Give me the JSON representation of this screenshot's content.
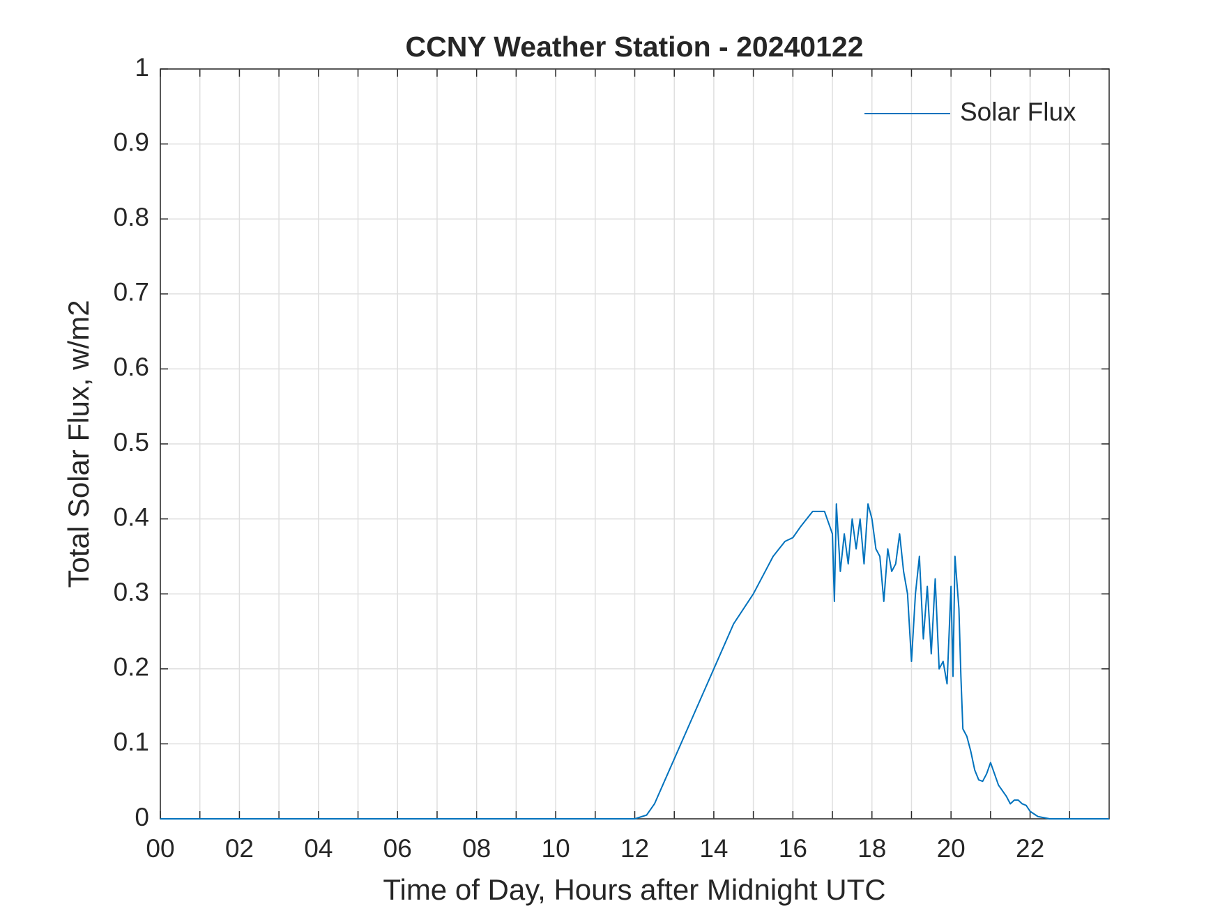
{
  "chart_data": {
    "type": "line",
    "title": "CCNY Weather Station - 20240122",
    "x_label": "Time of Day, Hours after Midnight UTC",
    "y_label": "Total Solar Flux, w/m2",
    "xlim": [
      0,
      24
    ],
    "ylim": [
      0,
      1
    ],
    "xticks": [
      {
        "value": 0,
        "label": "00"
      },
      {
        "value": 2,
        "label": "02"
      },
      {
        "value": 4,
        "label": "04"
      },
      {
        "value": 6,
        "label": "06"
      },
      {
        "value": 8,
        "label": "08"
      },
      {
        "value": 10,
        "label": "10"
      },
      {
        "value": 12,
        "label": "12"
      },
      {
        "value": 14,
        "label": "14"
      },
      {
        "value": 16,
        "label": "16"
      },
      {
        "value": 18,
        "label": "18"
      },
      {
        "value": 20,
        "label": "20"
      },
      {
        "value": 22,
        "label": "22"
      }
    ],
    "xminorticks": [
      1,
      3,
      5,
      7,
      9,
      11,
      13,
      15,
      17,
      19,
      21,
      23
    ],
    "yticks": [
      0,
      0.1,
      0.2,
      0.3,
      0.4,
      0.5,
      0.6,
      0.7,
      0.8,
      0.9,
      1
    ],
    "grid": true,
    "legend": "upper right",
    "x": [
      0,
      12,
      12.3,
      12.5,
      12.75,
      13,
      13.5,
      14,
      14.5,
      15,
      15.3,
      15.5,
      15.8,
      16,
      16.2,
      16.5,
      16.8,
      17,
      17.05,
      17.1,
      17.2,
      17.3,
      17.4,
      17.5,
      17.6,
      17.7,
      17.8,
      17.9,
      18,
      18.1,
      18.2,
      18.3,
      18.4,
      18.5,
      18.6,
      18.7,
      18.8,
      18.9,
      19,
      19.1,
      19.2,
      19.3,
      19.4,
      19.5,
      19.6,
      19.7,
      19.8,
      19.9,
      20,
      20.05,
      20.1,
      20.2,
      20.25,
      20.3,
      20.4,
      20.5,
      20.6,
      20.7,
      20.8,
      20.9,
      21,
      21.1,
      21.2,
      21.4,
      21.5,
      21.6,
      21.7,
      21.8,
      21.9,
      22,
      22.2,
      22.5,
      24
    ],
    "series": [
      {
        "name": "Solar Flux",
        "color": "#0072BD",
        "values": [
          0,
          0,
          0.005,
          0.02,
          0.05,
          0.08,
          0.14,
          0.2,
          0.26,
          0.3,
          0.33,
          0.35,
          0.37,
          0.375,
          0.39,
          0.41,
          0.41,
          0.38,
          0.29,
          0.42,
          0.33,
          0.38,
          0.34,
          0.4,
          0.36,
          0.4,
          0.34,
          0.42,
          0.4,
          0.36,
          0.35,
          0.29,
          0.36,
          0.33,
          0.34,
          0.38,
          0.33,
          0.3,
          0.21,
          0.3,
          0.35,
          0.24,
          0.31,
          0.22,
          0.32,
          0.2,
          0.21,
          0.18,
          0.31,
          0.19,
          0.35,
          0.28,
          0.19,
          0.12,
          0.11,
          0.09,
          0.065,
          0.052,
          0.05,
          0.06,
          0.075,
          0.06,
          0.045,
          0.03,
          0.02,
          0.025,
          0.025,
          0.02,
          0.018,
          0.01,
          0.003,
          0,
          0
        ]
      }
    ]
  }
}
